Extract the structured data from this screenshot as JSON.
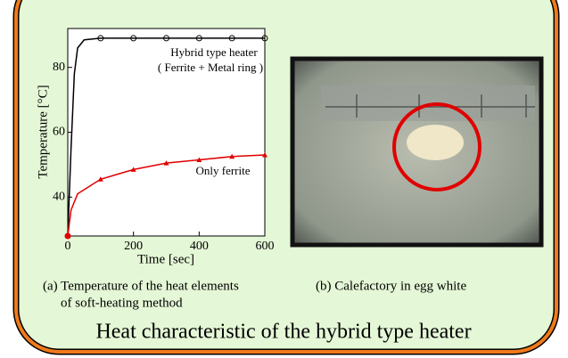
{
  "slide": {
    "title": "Heat characteristic of the hybrid type heater",
    "caption_a": [
      "(a) Temperature of the heat elements",
      "of soft-heating method"
    ],
    "caption_b": "(b) Calefactory in egg white"
  },
  "chart_data": {
    "type": "line",
    "x_label": "Time [sec]",
    "y_label": "Temperature [°C]",
    "xlim": [
      0,
      600
    ],
    "ylim": [
      28,
      92
    ],
    "xticks": [
      0,
      200,
      400,
      600
    ],
    "yticks": [
      40,
      60,
      80
    ],
    "annotations": [
      "Hybrid type heater",
      "( Ferrite + Metal ring )",
      "Only ferrite"
    ],
    "series": [
      {
        "name": "Hybrid type heater",
        "color": "#000000",
        "marker": "circle",
        "x": [
          0,
          10,
          20,
          30,
          50,
          100,
          200,
          300,
          400,
          500,
          600
        ],
        "values": [
          28,
          55,
          78,
          86,
          88.5,
          89,
          89,
          89,
          89,
          89,
          89
        ]
      },
      {
        "name": "Only ferrite",
        "color": "#e00000",
        "marker": "triangle",
        "x": [
          0,
          10,
          30,
          100,
          200,
          300,
          400,
          500,
          600
        ],
        "values": [
          28,
          36,
          41,
          45.5,
          48.5,
          50.5,
          51.5,
          52.5,
          53
        ]
      }
    ]
  }
}
